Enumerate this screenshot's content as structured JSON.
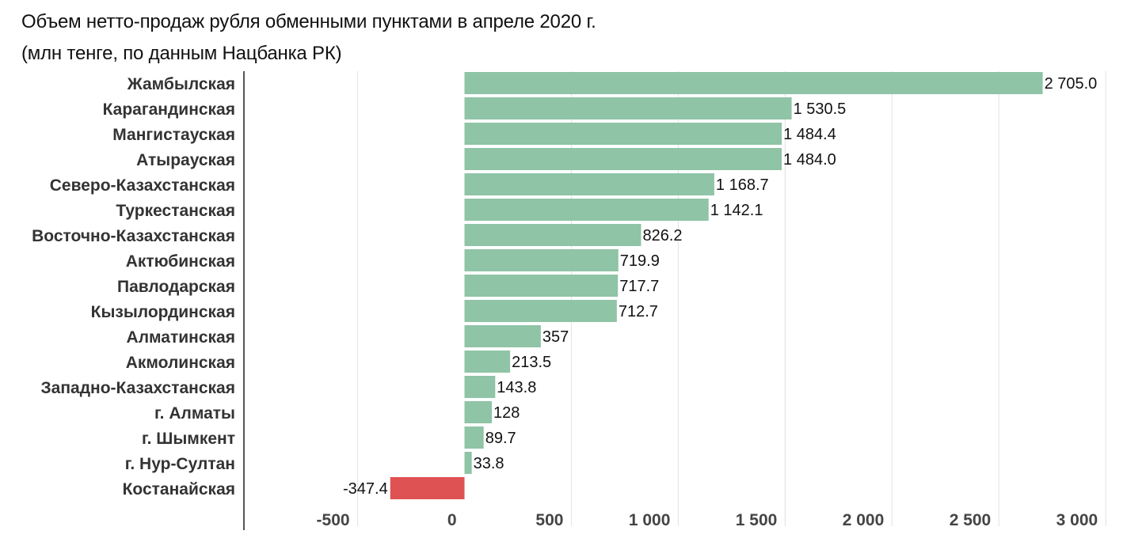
{
  "chart_data": {
    "type": "bar",
    "orientation": "horizontal",
    "title": "Объем нетто-продаж рубля обменными пунктами  в апреле 2020 г.",
    "subtitle": "(млн тенге, по данным Нацбанка РК)",
    "categories": [
      "Жамбылская",
      "Карагандинская",
      "Мангистауская",
      "Атырауская",
      "Северо-Казахстанская",
      "Туркестанская",
      "Восточно-Казахстанская",
      "Актюбинская",
      "Павлодарская",
      "Кызылординская",
      "Алматинская",
      "Акмолинская",
      "Западно-Казахстанская",
      "г. Алматы",
      "г. Шымкент",
      "г. Нур-Султан",
      "Костанайская"
    ],
    "values": [
      2705.0,
      1530.5,
      1484.4,
      1484.0,
      1168.7,
      1142.1,
      826.2,
      719.9,
      717.7,
      712.7,
      357,
      213.5,
      143.8,
      128,
      89.7,
      33.8,
      -347.4
    ],
    "value_labels": [
      "2 705.0",
      "1 530.5",
      "1 484.4",
      "1 484.0",
      "1 168.7",
      "1 142.1",
      "826.2",
      "719.9",
      "717.7",
      "712.7",
      "357",
      "213.5",
      "143.8",
      "128",
      "89.7",
      "33.8",
      "-347.4"
    ],
    "xlim": [
      -1000,
      3000
    ],
    "xticks": [
      -500,
      0,
      500,
      1000,
      1500,
      2000,
      2500,
      3000
    ],
    "xtick_labels": [
      "-500",
      "0",
      "500",
      "1 000",
      "1 500",
      "2 000",
      "2 500",
      "3 000"
    ],
    "grid": true,
    "colors": {
      "positive": "#8fc4a6",
      "negative": "#de5253",
      "grid": "#e2e2e2",
      "axis": "#555555"
    }
  }
}
